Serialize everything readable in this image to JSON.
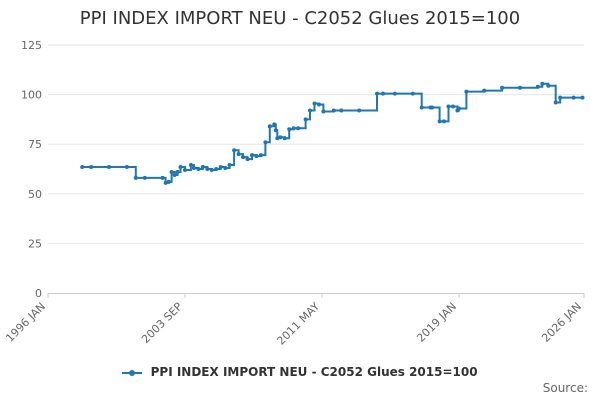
{
  "chart_data": {
    "type": "line",
    "title": "PPI INDEX IMPORT NEU - C2052 Glues 2015=100",
    "xlabel": "",
    "ylabel": "",
    "ylim": [
      0,
      125
    ],
    "y_ticks": [
      "0",
      "25",
      "50",
      "75",
      "100",
      "125"
    ],
    "x_ticks": [
      "1996 JAN",
      "2003 SEP",
      "2011 MAY",
      "2019 JAN",
      "2026 JAN"
    ],
    "grid": "horizontal",
    "legend_position": "bottom",
    "colors": {
      "series": "#1f77b4",
      "grid": "#e6e6e6"
    },
    "series": [
      {
        "name": "PPI INDEX IMPORT NEU - C2052 Glues 2015=100",
        "x": [
          "1997-12",
          "1998-06",
          "1999-06",
          "2000-06",
          "2000-12",
          "2001-06",
          "2002-06",
          "2002-08",
          "2002-10",
          "2002-12",
          "2003-02",
          "2003-04",
          "2003-06",
          "2003-09",
          "2004-01",
          "2004-03",
          "2004-06",
          "2004-09",
          "2004-12",
          "2005-03",
          "2005-06",
          "2005-09",
          "2005-12",
          "2006-03",
          "2006-06",
          "2006-09",
          "2006-12",
          "2007-03",
          "2007-06",
          "2007-09",
          "2007-12",
          "2008-03",
          "2008-06",
          "2008-09",
          "2008-10",
          "2008-11",
          "2009-01",
          "2009-04",
          "2009-07",
          "2009-10",
          "2010-01",
          "2010-06",
          "2010-09",
          "2010-12",
          "2011-03",
          "2011-06",
          "2012-01",
          "2012-06",
          "2013-06",
          "2014-06",
          "2014-10",
          "2015-06",
          "2016-06",
          "2016-12",
          "2017-06",
          "2017-07",
          "2017-12",
          "2018-03",
          "2018-06",
          "2018-09",
          "2018-12",
          "2019-01",
          "2019-06",
          "2020-06",
          "2021-06",
          "2022-06",
          "2023-06",
          "2023-09",
          "2024-01",
          "2024-06",
          "2024-09",
          "2025-06",
          "2025-12"
        ],
        "values": [
          63.5,
          63.5,
          63.5,
          63.5,
          58.0,
          58.0,
          58.0,
          55.5,
          56.0,
          61.0,
          59.5,
          61.0,
          63.5,
          62.0,
          64.5,
          63.0,
          62.5,
          63.5,
          62.5,
          62.0,
          62.5,
          63.5,
          63.0,
          64.5,
          72.0,
          70.0,
          68.5,
          67.5,
          69.5,
          69.0,
          69.5,
          76.0,
          84.0,
          85.0,
          82.0,
          78.0,
          78.5,
          78.0,
          82.5,
          83.0,
          83.0,
          87.5,
          92.0,
          95.5,
          95.0,
          91.5,
          92.0,
          92.0,
          92.0,
          100.5,
          100.5,
          100.5,
          100.5,
          93.5,
          93.5,
          93.5,
          86.5,
          86.5,
          94.0,
          94.0,
          92.0,
          93.0,
          101.5,
          102.0,
          103.5,
          103.5,
          104.0,
          105.5,
          104.5,
          96.0,
          98.5,
          98.5,
          98.5
        ]
      }
    ]
  },
  "credits": "Source:"
}
